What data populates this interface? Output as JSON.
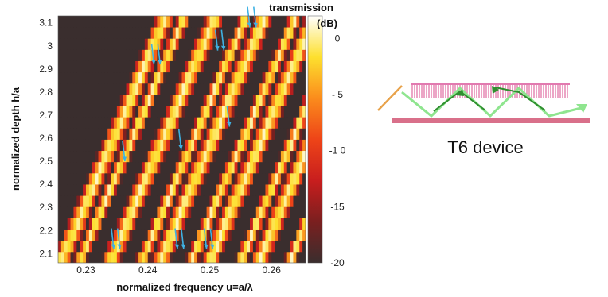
{
  "chart_data": {
    "type": "heatmap",
    "xlabel": "normalized frequency  u=a/λ",
    "ylabel": "normalized depth h/a",
    "x_ticks": [
      0.23,
      0.24,
      0.25,
      0.26
    ],
    "y_ticks": [
      2.1,
      2.2,
      2.3,
      2.4,
      2.5,
      2.6,
      2.7,
      2.8,
      2.9,
      3.0,
      3.1
    ],
    "y_tick_labels": [
      "2.1",
      "2.2",
      "2.3",
      "2.4",
      "2.5",
      "2.6",
      "2.7",
      "2.8",
      "2.9",
      "3",
      "3.1"
    ],
    "xlim": [
      0.2255,
      0.2655
    ],
    "ylim": [
      2.06,
      3.13
    ],
    "colorbar": {
      "title_line1": "transmission",
      "title_line2": "(dB)",
      "ticks": [
        0,
        -5,
        -10,
        -15,
        -20
      ],
      "tick_labels": [
        "0",
        "- 5",
        "-1 0",
        "-15",
        "-20"
      ],
      "range": [
        -20,
        2
      ],
      "colors": [
        "#3a2e2e",
        "#7a1f1f",
        "#c81e1e",
        "#ee4418",
        "#fb8c1c",
        "#fde02e",
        "#ffffff"
      ]
    },
    "band_model": {
      "base_frequencies": [
        0.2265,
        0.2295,
        0.2345,
        0.2395,
        0.2425,
        0.2475,
        0.2505,
        0.2555,
        0.2585,
        0.2635
      ],
      "tilt_per_depth": 0.016,
      "reference_depth": 2.1
    },
    "arrows": [
      {
        "x": 0.2345,
        "y": 2.12
      },
      {
        "x": 0.2355,
        "y": 2.12
      },
      {
        "x": 0.2448,
        "y": 2.12
      },
      {
        "x": 0.2458,
        "y": 2.12
      },
      {
        "x": 0.2495,
        "y": 2.12
      },
      {
        "x": 0.2505,
        "y": 2.12
      },
      {
        "x": 0.2363,
        "y": 2.5
      },
      {
        "x": 0.2454,
        "y": 2.55
      },
      {
        "x": 0.2532,
        "y": 2.65
      },
      {
        "x": 0.241,
        "y": 2.92
      },
      {
        "x": 0.242,
        "y": 2.92
      },
      {
        "x": 0.2513,
        "y": 2.98
      },
      {
        "x": 0.2523,
        "y": 2.98
      },
      {
        "x": 0.2565,
        "y": 3.08
      },
      {
        "x": 0.2575,
        "y": 3.08
      }
    ],
    "arrow_color": "#3fb2e3"
  },
  "device": {
    "label": "T6 device",
    "substrate_color": "#d9708a",
    "grating_color": "#e06aa0",
    "beam_color": "#7de07d",
    "beam_dark_color": "#2f8f2f",
    "input_color": "#e8a24a"
  }
}
